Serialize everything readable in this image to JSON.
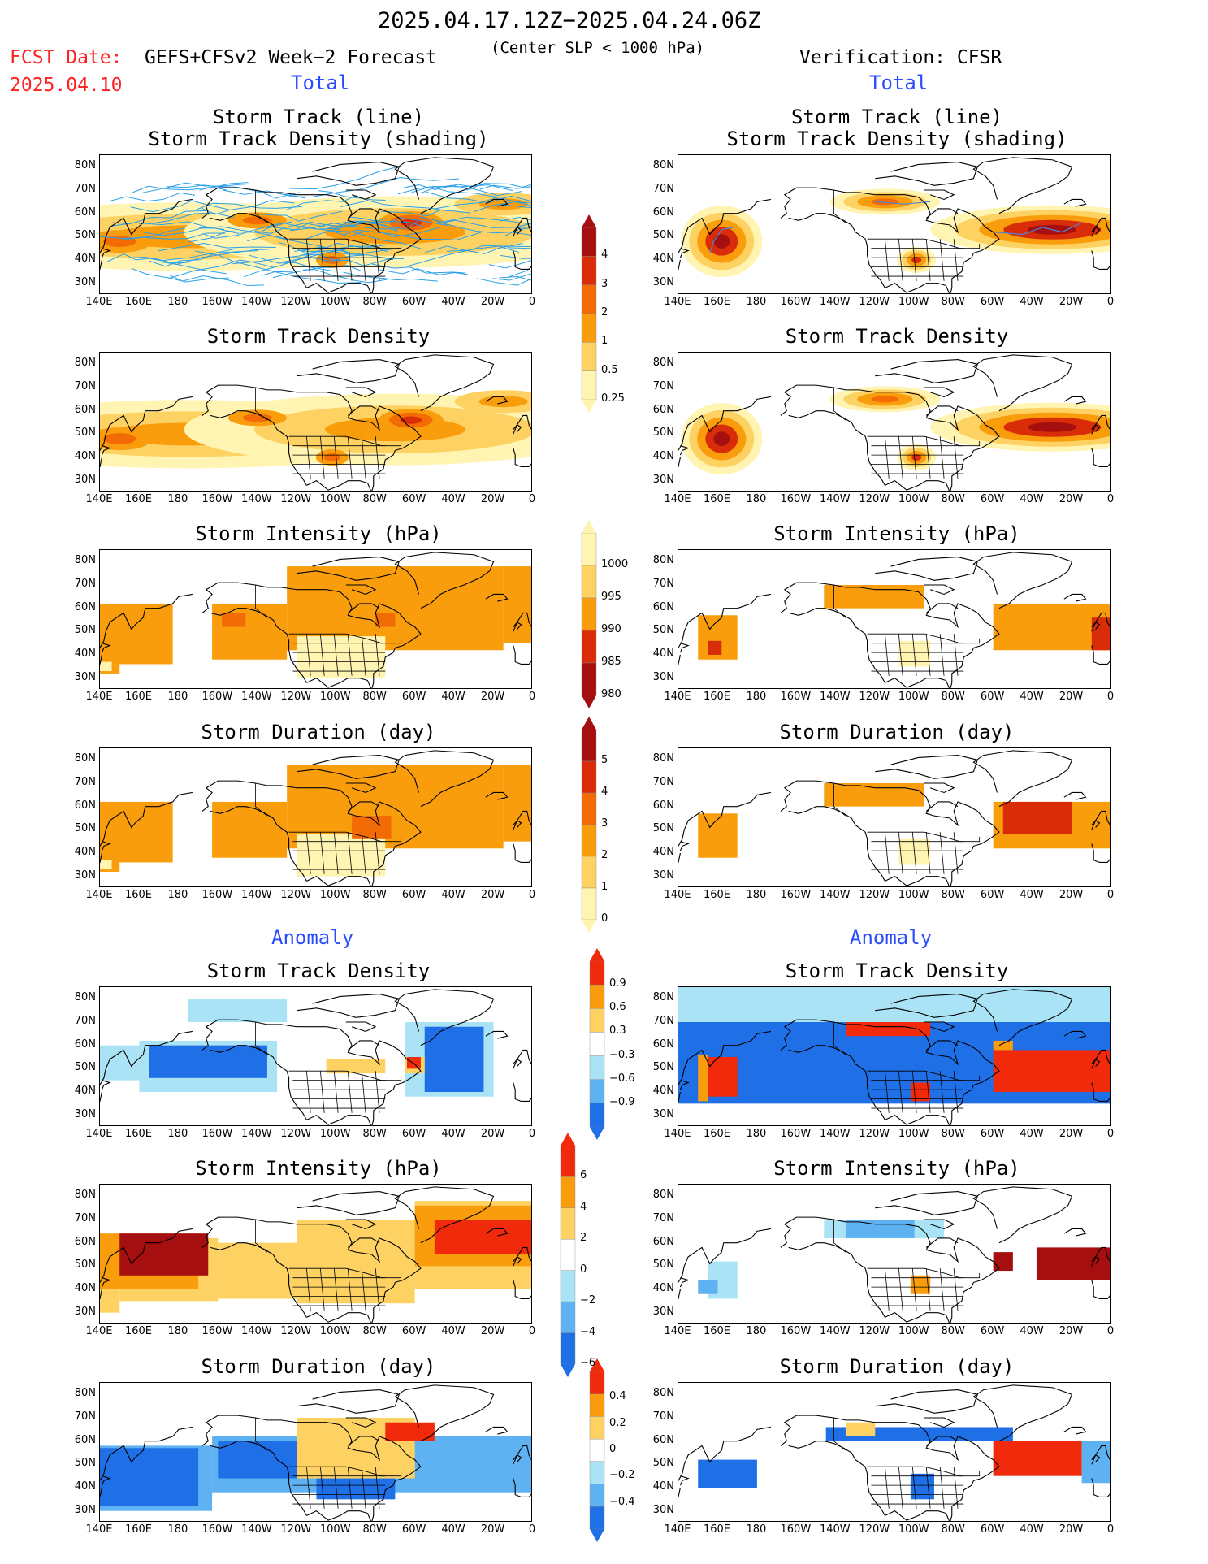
{
  "header": {
    "date_range": "2025.04.17.12Z−2025.04.24.06Z",
    "fcst_label": "FCST Date:",
    "fcst_date": "2025.04.10",
    "model": "GEFS+CFSv2 Week−2 Forecast",
    "criterion": "(Center SLP < 1000 hPa)",
    "verification": "Verification: CFSR"
  },
  "sections": {
    "total": "Total",
    "anomaly": "Anomaly"
  },
  "panel_titles": {
    "track_line": "Storm Track (line)",
    "track_shading": "Storm Track Density (shading)",
    "density": "Storm Track Density",
    "intensity": "Storm Intensity (hPa)",
    "duration": "Storm Duration (day)"
  },
  "axes": {
    "lat_labels": [
      "80N",
      "70N",
      "60N",
      "50N",
      "40N",
      "30N"
    ],
    "lon_labels": [
      "140E",
      "160E",
      "180",
      "160W",
      "140W",
      "120W",
      "100W",
      "80W",
      "60W",
      "40W",
      "20W",
      "0"
    ]
  },
  "colorbars": {
    "density_total": {
      "labels": [
        "4",
        "3",
        "2",
        "1",
        "0.5",
        "0.25"
      ],
      "colors": [
        "#a50f0f",
        "#d92d0a",
        "#f26b05",
        "#f99d0d",
        "#fdd262",
        "#fff4b2"
      ]
    },
    "intensity_total": {
      "labels": [
        "1000",
        "995",
        "990",
        "985",
        "980"
      ],
      "colors": [
        "#fff4b2",
        "#fdd262",
        "#f99d0d",
        "#d92d0a",
        "#a50f0f"
      ]
    },
    "duration_total": {
      "labels": [
        "5",
        "4",
        "3",
        "2",
        "1",
        "0"
      ],
      "colors": [
        "#a50f0f",
        "#d92d0a",
        "#f26b05",
        "#f99d0d",
        "#fdd262",
        "#fff4b2"
      ]
    },
    "density_anom": {
      "labels": [
        "0.9",
        "0.6",
        "0.3",
        "−0.3",
        "−0.6",
        "−0.9"
      ],
      "colors": [
        "#f02a0a",
        "#f99d0d",
        "#fdd262",
        "#ffffff",
        "#a9e3f5",
        "#5fb2f2",
        "#1f6fe6"
      ]
    },
    "intensity_anom": {
      "labels": [
        "6",
        "4",
        "2",
        "0",
        "−2",
        "−4",
        "−6"
      ],
      "colors": [
        "#f02a0a",
        "#f99d0d",
        "#fdd262",
        "#ffffff",
        "#a9e3f5",
        "#5fb2f2",
        "#1f6fe6"
      ]
    },
    "duration_anom": {
      "labels": [
        "0.4",
        "0.2",
        "0",
        "−0.2",
        "−0.4"
      ],
      "colors": [
        "#f02a0a",
        "#f99d0d",
        "#fdd262",
        "#ffffff",
        "#a9e3f5",
        "#5fb2f2",
        "#1f6fe6"
      ]
    }
  }
}
